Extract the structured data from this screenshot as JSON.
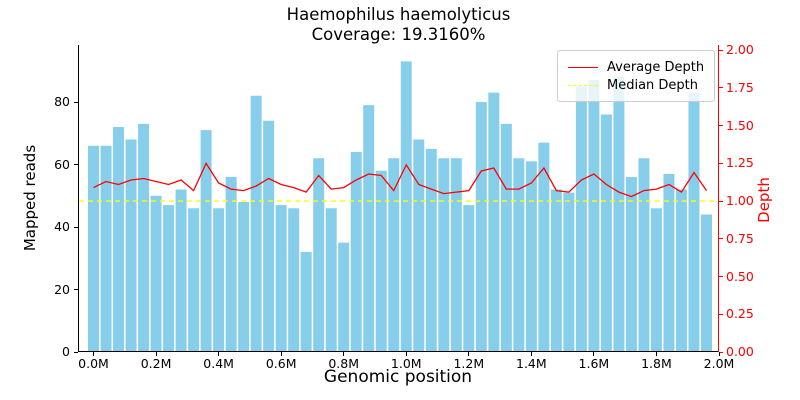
{
  "title": {
    "line1": "Haemophilus haemolyticus",
    "line2": "Coverage: 19.3160%"
  },
  "axes": {
    "left": {
      "label": "Mapped reads",
      "tick_labels": [
        "0",
        "20",
        "40",
        "60",
        "80"
      ],
      "tick_values": [
        0,
        20,
        40,
        60,
        80
      ],
      "color": "#000000"
    },
    "right": {
      "label": "Depth",
      "tick_labels": [
        "0.00",
        "0.25",
        "0.50",
        "0.75",
        "1.00",
        "1.25",
        "1.50",
        "1.75",
        "2.00"
      ],
      "tick_values": [
        0,
        0.25,
        0.5,
        0.75,
        1.0,
        1.25,
        1.5,
        1.75,
        2.0
      ],
      "color": "#ff0000"
    },
    "bottom": {
      "label": "Genomic position",
      "tick_labels": [
        "0.0M",
        "0.2M",
        "0.4M",
        "0.6M",
        "0.8M",
        "1.0M",
        "1.2M",
        "1.4M",
        "1.6M",
        "1.8M",
        "2.0M"
      ],
      "tick_values_mb": [
        0,
        0.2,
        0.4,
        0.6,
        0.8,
        1.0,
        1.2,
        1.4,
        1.6,
        1.8,
        2.0
      ]
    }
  },
  "legend": {
    "items": [
      {
        "label": "Average Depth",
        "color": "#ff0000",
        "line_style": "solid"
      },
      {
        "label": "Median Depth",
        "color": "#ffff00",
        "line_style": "dashed"
      }
    ]
  },
  "chart_data": {
    "type": "bar",
    "title": "Haemophilus haemolyticus / Coverage: 19.3160%",
    "x_bin_centers_mb_start": 0.0,
    "x_bin_step_mb": 0.04,
    "bars": {
      "name": "Mapped reads",
      "color": "#87CEEB",
      "values": [
        66,
        66,
        72,
        68,
        73,
        50,
        47,
        52,
        46,
        71,
        46,
        56,
        48,
        82,
        74,
        47,
        46,
        32,
        62,
        46,
        35,
        64,
        79,
        58,
        62,
        93,
        68,
        65,
        62,
        62,
        47,
        80,
        83,
        73,
        62,
        61,
        67,
        52,
        51,
        85,
        87,
        76,
        88,
        56,
        62,
        46,
        57,
        52,
        83,
        44
      ]
    },
    "series": [
      {
        "name": "Average Depth",
        "type": "line",
        "axis": "right",
        "color": "#ff0000",
        "values": [
          1.09,
          1.13,
          1.11,
          1.14,
          1.15,
          1.13,
          1.11,
          1.14,
          1.07,
          1.25,
          1.12,
          1.08,
          1.07,
          1.1,
          1.15,
          1.11,
          1.09,
          1.06,
          1.17,
          1.08,
          1.09,
          1.14,
          1.18,
          1.17,
          1.07,
          1.24,
          1.11,
          1.08,
          1.05,
          1.06,
          1.07,
          1.2,
          1.22,
          1.08,
          1.08,
          1.12,
          1.22,
          1.07,
          1.06,
          1.14,
          1.18,
          1.11,
          1.06,
          1.03,
          1.07,
          1.08,
          1.11,
          1.06,
          1.19,
          1.07
        ]
      },
      {
        "name": "Median Depth",
        "type": "hline",
        "axis": "right",
        "color": "#ffff00",
        "line_style": "dashed",
        "value": 1.0
      }
    ],
    "xlabel": "Genomic position",
    "ylabel_left": "Mapped reads",
    "ylabel_right": "Depth",
    "ylim_left": [
      0,
      98.24
    ],
    "ylim_right": [
      0,
      2.035
    ],
    "xlim_mb": [
      -0.0496,
      2.0
    ],
    "grid": false,
    "legend_position": "upper right"
  }
}
